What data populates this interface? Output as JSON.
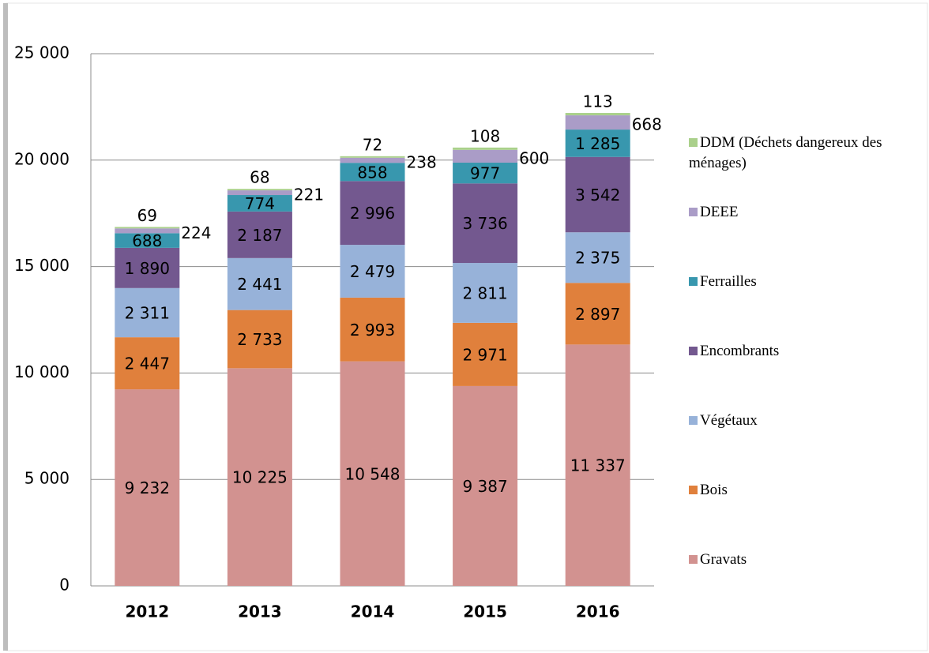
{
  "chart_data": {
    "type": "stacked_bar",
    "categories": [
      "2012",
      "2013",
      "2014",
      "2015",
      "2016"
    ],
    "series": [
      {
        "name": "Gravats",
        "color": "#d29290",
        "values": [
          9232,
          10225,
          10548,
          9387,
          11337
        ],
        "value_labels": [
          "9 232",
          "10 225",
          "10 548",
          "9 387",
          "11 337"
        ]
      },
      {
        "name": "Bois",
        "color": "#e0803c",
        "values": [
          2447,
          2733,
          2993,
          2971,
          2897
        ],
        "value_labels": [
          "2 447",
          "2 733",
          "2 993",
          "2 971",
          "2 897"
        ]
      },
      {
        "name": "Végétaux",
        "color": "#97b2d9",
        "values": [
          2311,
          2441,
          2479,
          2811,
          2375
        ],
        "value_labels": [
          "2 311",
          "2 441",
          "2 479",
          "2 811",
          "2 375"
        ]
      },
      {
        "name": "Encombrants",
        "color": "#73588f",
        "values": [
          1890,
          2187,
          2996,
          3736,
          3542
        ],
        "value_labels": [
          "1 890",
          "2 187",
          "2 996",
          "3 736",
          "3 542"
        ]
      },
      {
        "name": "Ferrailles",
        "color": "#3897ae",
        "values": [
          688,
          774,
          858,
          977,
          1285
        ],
        "value_labels": [
          "688",
          "774",
          "858",
          "977",
          "1 285"
        ]
      },
      {
        "name": "DEEE",
        "color": "#aa9cc7",
        "values": [
          224,
          221,
          238,
          600,
          668
        ]
      },
      {
        "name": "DDM (Déchets dangereux des ménages)",
        "color": "#aad08b",
        "values": [
          69,
          68,
          72,
          108,
          113
        ]
      }
    ],
    "ylim": [
      0,
      25000
    ],
    "yticks": [
      0,
      {
        "value": 5000,
        "label": "5 000"
      },
      {
        "value": 10000,
        "label": "10 000"
      },
      {
        "value": 15000,
        "label": "15 000"
      },
      {
        "value": 20000,
        "label": "20 000"
      },
      {
        "value": 25000,
        "label": "25 000"
      }
    ],
    "grid": true,
    "legend": "right"
  }
}
